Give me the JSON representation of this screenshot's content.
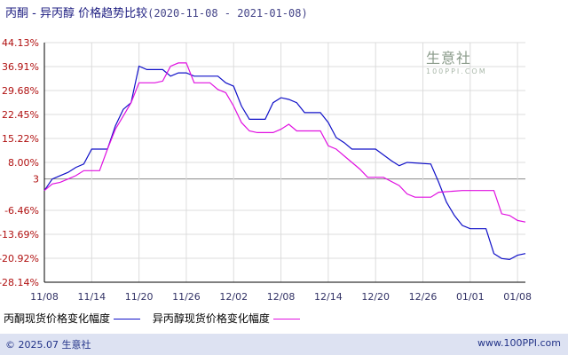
{
  "title": {
    "main": "丙酮 - 异丙醇 价格趋势比较",
    "range": "(2020-11-08 - 2021-01-08)"
  },
  "watermark": {
    "text": "生意社",
    "sub": "100PPI.COM"
  },
  "footer": {
    "copyright": "© 2025.07 生意社",
    "site": "www.100PPI.com"
  },
  "colors": {
    "series1": "#1010c8",
    "series2": "#e010e0",
    "axis": "#000000",
    "grid": "#dcdcdc",
    "title": "#1c1c80"
  },
  "legend": [
    {
      "label": "丙酮现货价格变化幅度",
      "color": "#1010c8"
    },
    {
      "label": "异丙醇现货价格变化幅度",
      "color": "#e010e0"
    }
  ],
  "chart_data": {
    "type": "line",
    "ylim": [
      -28.14,
      44.13
    ],
    "y_tick_labels": [
      "44.13%",
      "36.91%",
      "29.68%",
      "22.45%",
      "15.22%",
      "8.00%",
      "3",
      "-6.46%",
      "-13.69%",
      "-20.92%",
      "-28.14%"
    ],
    "y_tick_values": [
      44.13,
      36.91,
      29.68,
      22.45,
      15.22,
      8.0,
      3,
      -6.46,
      -13.69,
      -20.92,
      -28.14
    ],
    "x_tick_labels": [
      "11/08",
      "11/14",
      "11/20",
      "11/26",
      "12/02",
      "12/08",
      "12/14",
      "12/20",
      "12/26",
      "01/01",
      "01/08"
    ],
    "x_tick_days": [
      0,
      6,
      12,
      18,
      24,
      30,
      36,
      42,
      48,
      54,
      60
    ],
    "grid": true,
    "series": [
      {
        "name": "丙酮现货价格变化幅度",
        "color": "#1010c8",
        "points": [
          [
            0,
            -0.5
          ],
          [
            1,
            3
          ],
          [
            2,
            4
          ],
          [
            3,
            5
          ],
          [
            4,
            6.5
          ],
          [
            5,
            7.5
          ],
          [
            6,
            12
          ],
          [
            8,
            12
          ],
          [
            9,
            19
          ],
          [
            10,
            24
          ],
          [
            11,
            26
          ],
          [
            12,
            37
          ],
          [
            13,
            36
          ],
          [
            15,
            36
          ],
          [
            16,
            34
          ],
          [
            17,
            35
          ],
          [
            18,
            35
          ],
          [
            19,
            34
          ],
          [
            22,
            34
          ],
          [
            23,
            32
          ],
          [
            24,
            31
          ],
          [
            25,
            25
          ],
          [
            26,
            21
          ],
          [
            28,
            21
          ],
          [
            29,
            26
          ],
          [
            30,
            27.5
          ],
          [
            31,
            27
          ],
          [
            32,
            26
          ],
          [
            33,
            23
          ],
          [
            35,
            23
          ],
          [
            36,
            20
          ],
          [
            37,
            15.5
          ],
          [
            38,
            14
          ],
          [
            39,
            12
          ],
          [
            42,
            12
          ],
          [
            44,
            8.5
          ],
          [
            45,
            7
          ],
          [
            46,
            8
          ],
          [
            49,
            7.5
          ],
          [
            50,
            2
          ],
          [
            51,
            -4
          ],
          [
            52,
            -8
          ],
          [
            53,
            -11
          ],
          [
            54,
            -12
          ],
          [
            56,
            -12
          ],
          [
            57,
            -19.5
          ],
          [
            58,
            -21
          ],
          [
            59,
            -21.3
          ],
          [
            60,
            -20
          ],
          [
            61,
            -19.5
          ]
        ]
      },
      {
        "name": "异丙醇现货价格变化幅度",
        "color": "#e010e0",
        "points": [
          [
            0,
            -0.5
          ],
          [
            1,
            1.5
          ],
          [
            2,
            2
          ],
          [
            3,
            3
          ],
          [
            4,
            4
          ],
          [
            5,
            5.5
          ],
          [
            7,
            5.5
          ],
          [
            8,
            12
          ],
          [
            9,
            18
          ],
          [
            10,
            22
          ],
          [
            11,
            26
          ],
          [
            12,
            32
          ],
          [
            14,
            32
          ],
          [
            15,
            32.5
          ],
          [
            16,
            37
          ],
          [
            17,
            38
          ],
          [
            18,
            38
          ],
          [
            19,
            32
          ],
          [
            21,
            32
          ],
          [
            22,
            30
          ],
          [
            23,
            29
          ],
          [
            24,
            25
          ],
          [
            25,
            20
          ],
          [
            26,
            17.5
          ],
          [
            27,
            17
          ],
          [
            29,
            17
          ],
          [
            30,
            18
          ],
          [
            31,
            19.5
          ],
          [
            32,
            17.5
          ],
          [
            35,
            17.5
          ],
          [
            36,
            13
          ],
          [
            37,
            12
          ],
          [
            38,
            10
          ],
          [
            39,
            8
          ],
          [
            40,
            6
          ],
          [
            41,
            3.5
          ],
          [
            43,
            3.5
          ],
          [
            45,
            1
          ],
          [
            46,
            -1.5
          ],
          [
            47,
            -2.5
          ],
          [
            49,
            -2.5
          ],
          [
            50,
            -1
          ],
          [
            53,
            -0.5
          ],
          [
            57,
            -0.5
          ],
          [
            58,
            -7.5
          ],
          [
            59,
            -8
          ],
          [
            60,
            -9.5
          ],
          [
            61,
            -10
          ]
        ]
      }
    ]
  }
}
